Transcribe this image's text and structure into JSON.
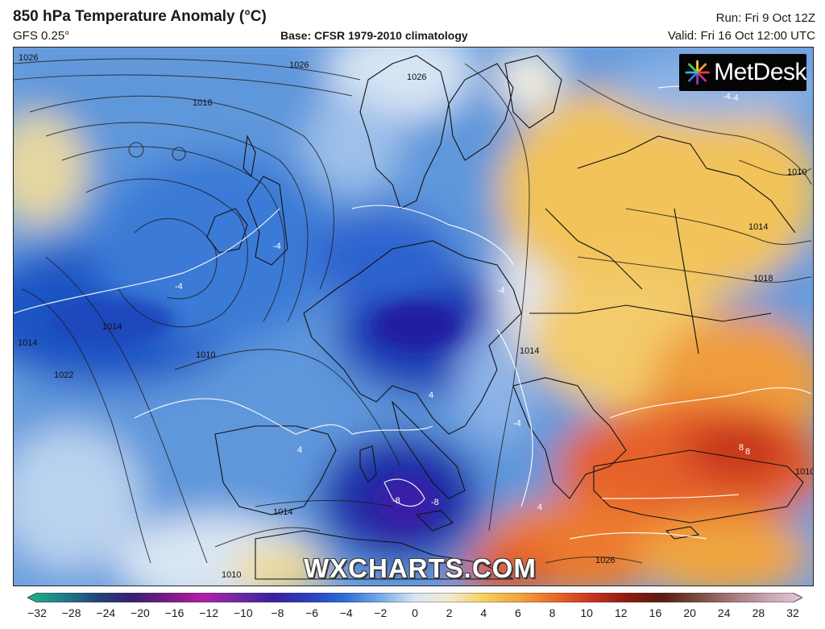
{
  "header": {
    "title": "850 hPa Temperature Anomaly (°C)",
    "model": "GFS 0.25°",
    "base": "Base: CFSR 1979-2010 climatology",
    "run": "Run: Fri 9 Oct 12Z",
    "valid": "Valid: Fri 16 Oct 12:00 UTC"
  },
  "logo": {
    "text": "MetDesk",
    "icon": "starburst-logo-icon"
  },
  "watermark": "WXCHARTS.COM",
  "map": {
    "region": "Europe",
    "isobar_labels": [
      "1026",
      "1026",
      "1018",
      "1010",
      "1014",
      "1018",
      "1014",
      "1022",
      "1014",
      "1010",
      "1010",
      "1014",
      "1026",
      "1014",
      "1010",
      "1026"
    ],
    "anomaly_labels": [
      "-4",
      "-4",
      "4",
      "-4",
      "-4",
      "4",
      "4",
      "-8",
      "-8",
      "8",
      "8",
      "-4",
      "-4"
    ]
  },
  "colorbar": {
    "ticks": [
      "−32",
      "−28",
      "−24",
      "−20",
      "−16",
      "−12",
      "−10",
      "−8",
      "−6",
      "−4",
      "−2",
      "0",
      "2",
      "4",
      "6",
      "8",
      "10",
      "12",
      "16",
      "20",
      "24",
      "28",
      "32"
    ],
    "colors": [
      "#22b38a",
      "#1f7f8a",
      "#23437a",
      "#3a1f6e",
      "#7a1a86",
      "#b21fa8",
      "#6e2aa3",
      "#3b1fa0",
      "#2c3fc0",
      "#2b6ed6",
      "#76a9e8",
      "#d8e6f5",
      "#f3eacd",
      "#f4cf5a",
      "#f2a23a",
      "#e8672a",
      "#c9361f",
      "#8f1a13",
      "#5c1b12",
      "#7a4a3e",
      "#a6787a",
      "#c8a4b2",
      "#e8c4d8"
    ]
  },
  "chart_data": {
    "type": "heatmap",
    "title": "850 hPa Temperature Anomaly (°C)",
    "colorbar_range": [
      -32,
      32
    ],
    "colorbar_ticks": [
      -32,
      -28,
      -24,
      -20,
      -16,
      -12,
      -10,
      -8,
      -6,
      -4,
      -2,
      0,
      2,
      4,
      6,
      8,
      10,
      12,
      16,
      20,
      24,
      28,
      32
    ]
  }
}
